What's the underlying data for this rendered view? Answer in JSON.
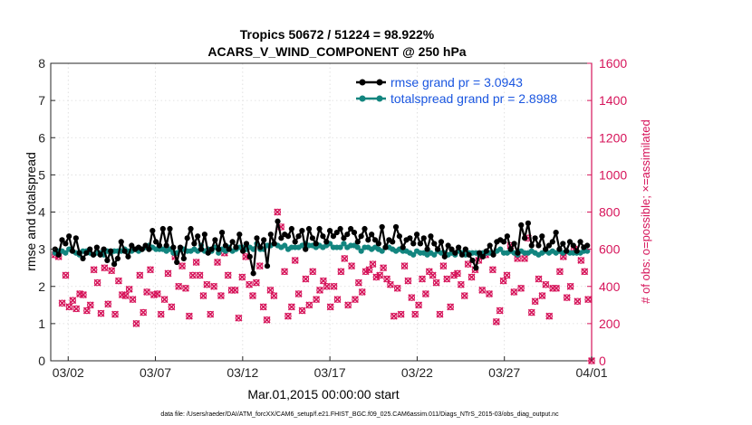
{
  "chart_data": {
    "type": "line",
    "title_line1": "Tropics 50672 / 51224 = 98.922%",
    "title_line2": "ACARS_V_WIND_COMPONENT @ 250 hPa",
    "xlabel": "Mar.01,2015 00:00:00 start",
    "ylabel_left": "rmse and totalspread",
    "ylabel_right": "# of obs: o=possible; ×=assimilated",
    "footer": "data file: /Users/raeder/DAI/ATM_forcXX/CAM6_setup/f.e21.FHIST_BGC.f09_025.CAM6assim.011/Diags_NTrS_2015-03/obs_diag_output.nc",
    "xlim": [
      0,
      31
    ],
    "ylim_left": [
      0,
      8
    ],
    "ylim_right": [
      0,
      1600
    ],
    "x_ticks": [
      {
        "x": 1,
        "label": "03/02"
      },
      {
        "x": 6,
        "label": "03/07"
      },
      {
        "x": 11,
        "label": "03/12"
      },
      {
        "x": 16,
        "label": "03/17"
      },
      {
        "x": 21,
        "label": "03/22"
      },
      {
        "x": 26,
        "label": "03/27"
      },
      {
        "x": 31,
        "label": "04/01"
      }
    ],
    "y_ticks_left": [
      "0",
      "1",
      "2",
      "3",
      "4",
      "5",
      "6",
      "7",
      "8"
    ],
    "y_ticks_right": [
      "0",
      "200",
      "400",
      "600",
      "800",
      "1000",
      "1200",
      "1400",
      "1600"
    ],
    "colors": {
      "rmse": "#000000",
      "spread": "#12857f",
      "obs": "#d6145a",
      "legend_text": "#1a56e0"
    },
    "series": [
      {
        "name": "rmse grand pr = 3.0943",
        "values": [
          3.0,
          2.85,
          3.25,
          3.15,
          3.35,
          2.95,
          3.3,
          2.9,
          2.75,
          2.9,
          3.0,
          2.85,
          3.05,
          2.85,
          3.0,
          2.7,
          2.95,
          2.6,
          2.75,
          3.2,
          2.95,
          2.8,
          3.1,
          3.0,
          3.05,
          3.0,
          3.1,
          3.0,
          3.5,
          3.2,
          3.1,
          3.55,
          3.1,
          3.55,
          3.05,
          2.65,
          3.05,
          2.75,
          3.3,
          3.55,
          3.15,
          3.35,
          3.0,
          3.4,
          2.9,
          3.0,
          3.25,
          3.0,
          3.45,
          3.1,
          3.0,
          3.2,
          3.05,
          3.4,
          2.95,
          3.15,
          2.8,
          2.35,
          3.3,
          3.05,
          3.25,
          2.55,
          3.4,
          3.15,
          3.75,
          3.3,
          3.4,
          3.35,
          3.55,
          3.2,
          3.35,
          3.5,
          3.0,
          3.55,
          3.3,
          3.15,
          3.55,
          3.35,
          3.2,
          3.5,
          3.35,
          3.45,
          3.55,
          3.3,
          3.4,
          3.55,
          3.45,
          3.2,
          3.35,
          3.55,
          3.25,
          3.4,
          3.25,
          3.15,
          3.6,
          3.05,
          3.25,
          3.2,
          3.6,
          3.35,
          3.05,
          3.25,
          3.3,
          3.15,
          3.4,
          3.15,
          3.3,
          3.0,
          3.35,
          3.15,
          3.0,
          3.2,
          2.8,
          3.1,
          3.0,
          2.9,
          3.05,
          2.85,
          3.0,
          2.85,
          2.7,
          2.5,
          2.9,
          2.8,
          2.95,
          3.1,
          2.85,
          3.2,
          3.25,
          3.2,
          3.35,
          3.0,
          3.15,
          2.9,
          3.65,
          3.3,
          3.7,
          3.1,
          3.3,
          3.1,
          3.35,
          3.0,
          3.1,
          3.2,
          3.45,
          3.0,
          3.15,
          2.95,
          3.2,
          3.1,
          2.95,
          3.2,
          3.05,
          3.1
        ]
      },
      {
        "name": "totalspread grand pr = 2.8988",
        "values": [
          2.9,
          2.95,
          2.95,
          2.9,
          3.0,
          2.95,
          2.9,
          2.85,
          2.95,
          2.95,
          2.9,
          2.85,
          2.9,
          2.9,
          2.85,
          2.95,
          2.9,
          2.95,
          2.95,
          2.95,
          3.0,
          2.95,
          2.95,
          3.0,
          2.95,
          3.0,
          3.05,
          3.1,
          3.05,
          3.0,
          3.0,
          3.0,
          2.95,
          3.0,
          2.9,
          2.9,
          3.0,
          3.0,
          2.95,
          2.95,
          3.0,
          2.95,
          3.1,
          2.95,
          3.0,
          2.95,
          3.05,
          2.9,
          3.0,
          2.95,
          3.05,
          2.95,
          3.0,
          3.05,
          3.05,
          3.0,
          3.05,
          3.0,
          3.15,
          3.0,
          3.0,
          3.1,
          3.1,
          3.15,
          3.1,
          3.05,
          3.1,
          3.0,
          3.05,
          3.05,
          3.05,
          3.1,
          3.15,
          3.1,
          3.1,
          3.05,
          3.1,
          3.05,
          3.1,
          3.15,
          3.05,
          3.05,
          3.05,
          3.15,
          3.05,
          3.1,
          3.1,
          3.05,
          2.95,
          3.05,
          3.05,
          3.0,
          3.05,
          3.0,
          2.95,
          3.05,
          3.05,
          3.0,
          2.95,
          3.0,
          2.95,
          2.95,
          2.9,
          2.85,
          2.95,
          2.9,
          2.9,
          2.85,
          2.9,
          2.85,
          2.95,
          2.9,
          2.9,
          2.85,
          2.9,
          2.85,
          2.95,
          2.9,
          2.85,
          2.9,
          2.9,
          2.9,
          2.85,
          2.9,
          2.9,
          2.9,
          2.9,
          2.95,
          3.0,
          2.9,
          2.9,
          2.95,
          2.9,
          2.85,
          2.95,
          2.9,
          2.9,
          2.95,
          2.9,
          2.85,
          2.9,
          2.95,
          2.9,
          2.95,
          2.9,
          2.95,
          2.9,
          2.95,
          2.9,
          2.9,
          2.9,
          2.9,
          2.95,
          2.95
        ]
      }
    ],
    "obs_possible": [
      570,
      560,
      310,
      460,
      290,
      325,
      280,
      360,
      355,
      270,
      300,
      490,
      420,
      255,
      500,
      305,
      485,
      250,
      430,
      355,
      350,
      385,
      330,
      200,
      460,
      260,
      370,
      490,
      355,
      360,
      250,
      330,
      470,
      290,
      560,
      400,
      510,
      390,
      240,
      460,
      530,
      460,
      350,
      410,
      250,
      400,
      530,
      350,
      580,
      460,
      380,
      380,
      230,
      450,
      560,
      410,
      350,
      420,
      510,
      290,
      220,
      380,
      350,
      800,
      720,
      480,
      240,
      290,
      540,
      360,
      270,
      440,
      300,
      480,
      330,
      380,
      430,
      400,
      290,
      400,
      330,
      480,
      550,
      300,
      510,
      330,
      420,
      370,
      480,
      490,
      520,
      450,
      460,
      500,
      440,
      410,
      240,
      390,
      250,
      510,
      430,
      340,
      250,
      300,
      440,
      360,
      480,
      460,
      420,
      250,
      510,
      440,
      290,
      460,
      470,
      410,
      350,
      520,
      450,
      490,
      540,
      380,
      570,
      360,
      490,
      210,
      270,
      430,
      460,
      620,
      370,
      550,
      390,
      550,
      660,
      260,
      320,
      440,
      350,
      410,
      240,
      390,
      390,
      480,
      560,
      340,
      400,
      600,
      320,
      540,
      480,
      330,
      0
    ]
  }
}
